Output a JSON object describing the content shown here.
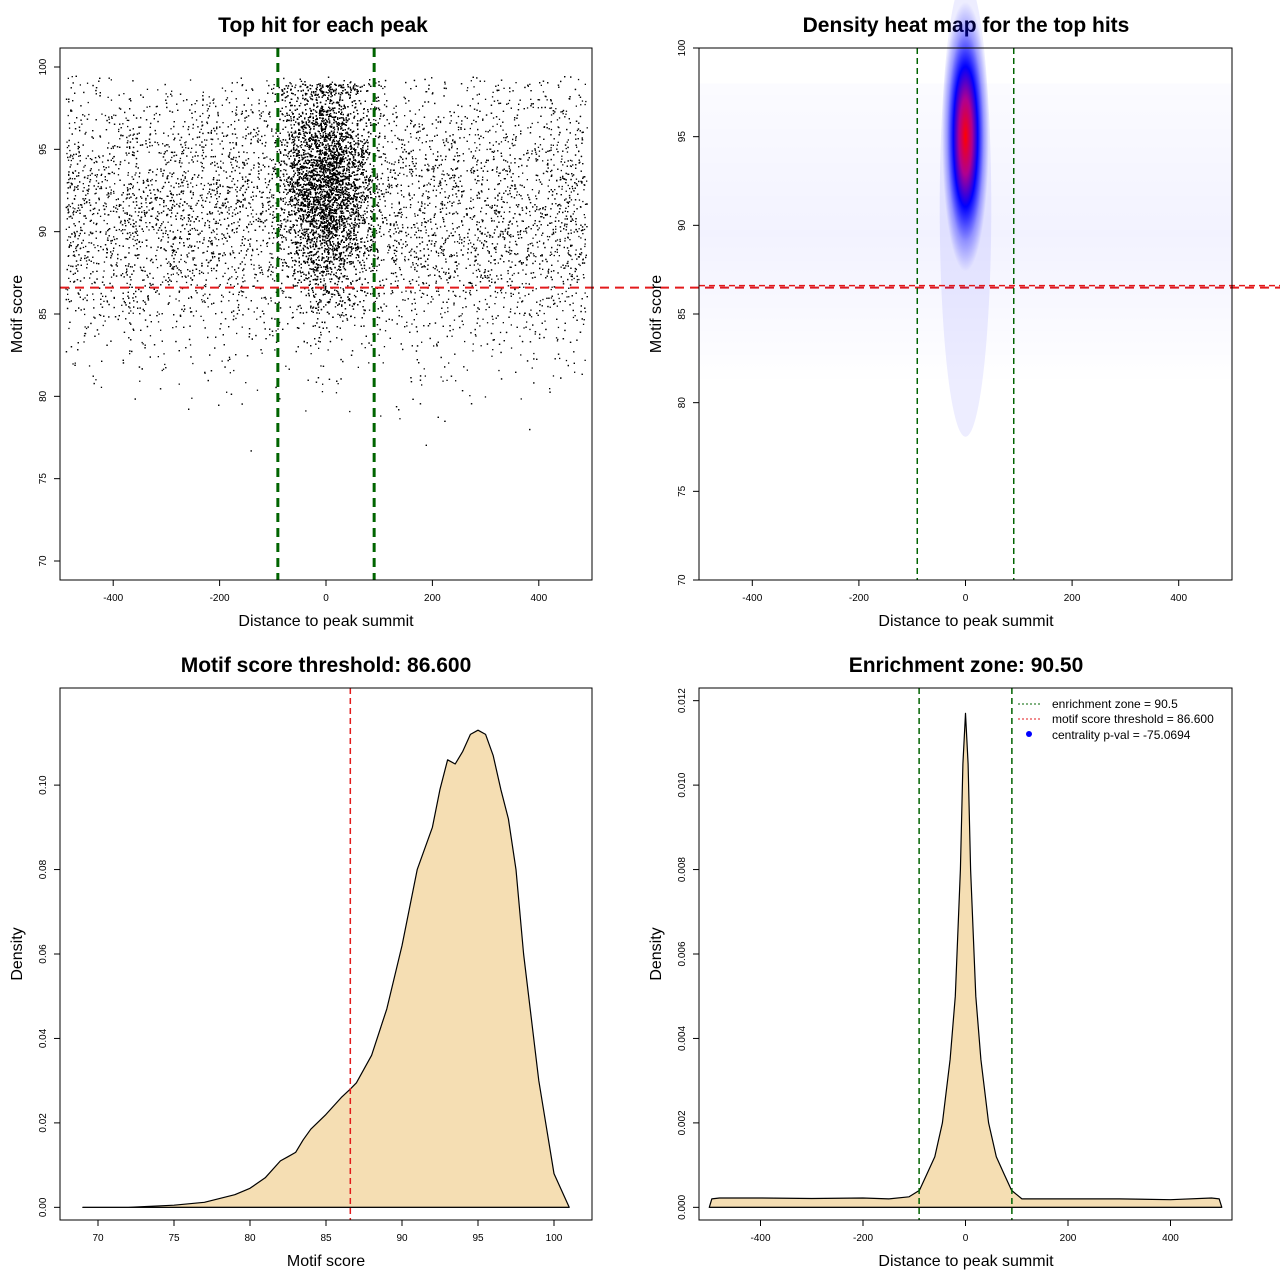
{
  "colors": {
    "density_fill": "#f5deb3",
    "threshold_line": "#e31a1c",
    "zone_line": "#006400",
    "heat_low": "#ffffff",
    "heat_mid": "#0000ff",
    "heat_high": "#ff0000",
    "centrality_point": "#0000ff"
  },
  "chart_data": [
    {
      "type": "scatter",
      "title": "Top hit for each peak",
      "xlabel": "Distance to peak summit",
      "ylabel": "Motif score",
      "xlim": [
        -500,
        500
      ],
      "ylim": [
        70,
        100
      ],
      "xticks": [
        "-400",
        "-200",
        "0",
        "200",
        "400"
      ],
      "xtick_values": [
        -400,
        -200,
        0,
        200,
        400
      ],
      "yticks": [
        "70",
        "75",
        "80",
        "85",
        "90",
        "95",
        "100"
      ],
      "ytick_values": [
        70,
        75,
        80,
        85,
        90,
        95,
        100
      ],
      "hlines": [
        86.6
      ],
      "vlines": [
        -90.5,
        90.5
      ],
      "background_points": {
        "x_range": [
          -490,
          490
        ],
        "y_range": [
          75,
          99.5
        ],
        "peak_y": 91,
        "count": 9000
      },
      "central_cluster": {
        "x_center": 0,
        "x_sd": 40,
        "y_range": [
          83,
          99
        ],
        "peak_y": 93,
        "count": 9000
      }
    },
    {
      "type": "heatmap",
      "title": "Density heat map for the top hits",
      "xlabel": "Distance to peak summit",
      "ylabel": "Motif score",
      "xlim": [
        -500,
        500
      ],
      "ylim": [
        70,
        100
      ],
      "xticks": [
        "-400",
        "-200",
        "0",
        "200",
        "400"
      ],
      "xtick_values": [
        -400,
        -200,
        0,
        200,
        400
      ],
      "yticks": [
        "70",
        "75",
        "80",
        "85",
        "90",
        "95",
        "100"
      ],
      "ytick_values": [
        70,
        75,
        80,
        85,
        90,
        95,
        100
      ],
      "hlines": [
        86.6
      ],
      "vlines": [
        -90.5,
        90.5
      ],
      "hotspot": {
        "x": 0,
        "y": 95,
        "x_sd": 20,
        "y_sd": 4
      }
    },
    {
      "type": "area",
      "title": "Motif score threshold: 86.600",
      "xlabel": "Motif score",
      "ylabel": "Density",
      "xlim": [
        67.5,
        102.5
      ],
      "ylim": [
        -0.003,
        0.123
      ],
      "xticks": [
        "70",
        "75",
        "80",
        "85",
        "90",
        "95",
        "100"
      ],
      "xtick_values": [
        70,
        75,
        80,
        85,
        90,
        95,
        100
      ],
      "yticks": [
        "0.00",
        "0.02",
        "0.04",
        "0.06",
        "0.08",
        "0.10"
      ],
      "ytick_values": [
        0,
        0.02,
        0.04,
        0.06,
        0.08,
        0.1
      ],
      "vlines": [
        86.6
      ],
      "x": [
        69,
        72,
        75,
        77,
        79,
        80,
        81,
        82,
        82.5,
        83,
        83.5,
        84,
        85,
        86,
        86.6,
        87,
        88,
        89,
        90,
        91,
        92,
        92.5,
        93,
        93.5,
        94,
        94.5,
        95,
        95.5,
        96,
        96.5,
        97,
        97.5,
        98,
        99,
        100,
        101
      ],
      "values": [
        0.0,
        0.0,
        0.0005,
        0.0012,
        0.003,
        0.0045,
        0.007,
        0.011,
        0.012,
        0.013,
        0.016,
        0.0185,
        0.022,
        0.026,
        0.028,
        0.0295,
        0.036,
        0.047,
        0.062,
        0.08,
        0.09,
        0.099,
        0.106,
        0.105,
        0.108,
        0.112,
        0.113,
        0.112,
        0.107,
        0.099,
        0.092,
        0.08,
        0.06,
        0.03,
        0.008,
        0.0
      ]
    },
    {
      "type": "area",
      "title": "Enrichment zone: 90.50",
      "xlabel": "Distance to peak summit",
      "ylabel": "Density",
      "xlim": [
        -520,
        520
      ],
      "ylim": [
        -0.0003,
        0.0123
      ],
      "xticks": [
        "-400",
        "-200",
        "0",
        "200",
        "400"
      ],
      "xtick_values": [
        -400,
        -200,
        0,
        200,
        400
      ],
      "yticks": [
        "0.000",
        "0.002",
        "0.004",
        "0.006",
        "0.008",
        "0.010",
        "0.012"
      ],
      "ytick_values": [
        0,
        0.002,
        0.004,
        0.006,
        0.008,
        0.01,
        0.012
      ],
      "vlines": [
        -90.5,
        90.5
      ],
      "x": [
        -500,
        -495,
        -480,
        -400,
        -300,
        -200,
        -150,
        -110,
        -90,
        -75,
        -60,
        -45,
        -30,
        -20,
        -10,
        -5,
        0,
        5,
        10,
        20,
        30,
        45,
        60,
        75,
        90,
        110,
        150,
        200,
        300,
        400,
        480,
        495,
        500
      ],
      "values": [
        0.0,
        0.0002,
        0.00022,
        0.00022,
        0.00021,
        0.00022,
        0.0002,
        0.00025,
        0.0004,
        0.0008,
        0.0012,
        0.002,
        0.0035,
        0.005,
        0.008,
        0.0105,
        0.0117,
        0.0105,
        0.008,
        0.005,
        0.0035,
        0.002,
        0.0012,
        0.0008,
        0.0004,
        0.0002,
        0.0002,
        0.0002,
        0.0002,
        0.00018,
        0.00022,
        0.0002,
        0.0
      ],
      "legend": {
        "position": "top-right",
        "entries": [
          {
            "label": "enrichment zone = 90.5",
            "style": "dotted-green"
          },
          {
            "label": "motif score threshold = 86.600",
            "style": "dotted-red"
          },
          {
            "label": "centrality p-val = -75.0694",
            "style": "blue-point"
          }
        ]
      }
    }
  ]
}
